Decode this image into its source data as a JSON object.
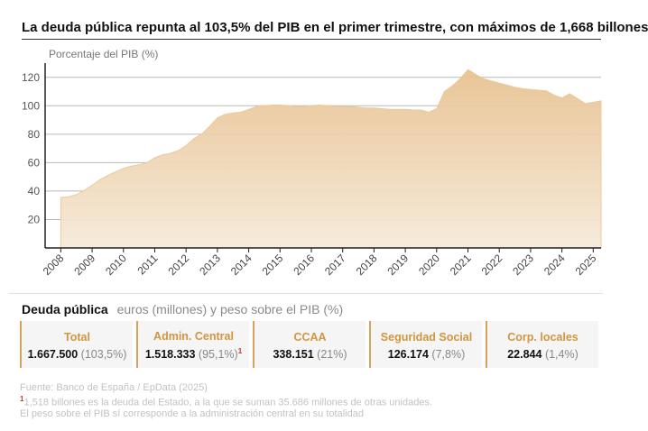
{
  "header": {
    "title": "La deuda pública repunta al 103,5% del PIB en el primer trimestre, con máximos de 1,668 billones"
  },
  "chart_data": {
    "type": "area",
    "ylabel": "Porcentaje del PIB (%)",
    "ylim": [
      0,
      130
    ],
    "yticks": [
      20,
      40,
      60,
      80,
      100,
      120
    ],
    "xlim": [
      2007.5,
      2025.25
    ],
    "xticks": [
      2008,
      2009,
      2010,
      2011,
      2012,
      2013,
      2014,
      2015,
      2016,
      2017,
      2018,
      2019,
      2020,
      2021,
      2022,
      2023,
      2024,
      2025
    ],
    "grid": true,
    "color": "#ebc99d",
    "points": [
      [
        2008.0,
        35.5
      ],
      [
        2008.25,
        36.0
      ],
      [
        2008.5,
        37.5
      ],
      [
        2008.75,
        40.5
      ],
      [
        2009.0,
        44.0
      ],
      [
        2009.25,
        48.0
      ],
      [
        2009.5,
        51.0
      ],
      [
        2009.75,
        53.5
      ],
      [
        2010.0,
        56.0
      ],
      [
        2010.25,
        57.5
      ],
      [
        2010.5,
        58.5
      ],
      [
        2010.75,
        60.0
      ],
      [
        2011.0,
        63.5
      ],
      [
        2011.25,
        65.5
      ],
      [
        2011.5,
        66.5
      ],
      [
        2011.75,
        68.5
      ],
      [
        2012.0,
        72.0
      ],
      [
        2012.25,
        77.0
      ],
      [
        2012.5,
        80.0
      ],
      [
        2012.75,
        85.5
      ],
      [
        2013.0,
        91.5
      ],
      [
        2013.25,
        94.0
      ],
      [
        2013.5,
        95.0
      ],
      [
        2013.75,
        95.5
      ],
      [
        2014.0,
        97.5
      ],
      [
        2014.25,
        99.5
      ],
      [
        2014.5,
        100.0
      ],
      [
        2014.75,
        100.5
      ],
      [
        2015.0,
        100.5
      ],
      [
        2015.25,
        100.0
      ],
      [
        2015.5,
        99.5
      ],
      [
        2015.75,
        99.5
      ],
      [
        2016.0,
        100.0
      ],
      [
        2016.25,
        100.5
      ],
      [
        2016.5,
        100.0
      ],
      [
        2016.75,
        99.5
      ],
      [
        2017.0,
        99.5
      ],
      [
        2017.25,
        99.5
      ],
      [
        2017.5,
        99.0
      ],
      [
        2017.75,
        98.5
      ],
      [
        2018.0,
        98.5
      ],
      [
        2018.25,
        98.0
      ],
      [
        2018.5,
        97.5
      ],
      [
        2018.75,
        97.5
      ],
      [
        2019.0,
        97.5
      ],
      [
        2019.25,
        97.0
      ],
      [
        2019.5,
        97.0
      ],
      [
        2019.75,
        95.5
      ],
      [
        2020.0,
        98.0
      ],
      [
        2020.25,
        110.0
      ],
      [
        2020.5,
        114.0
      ],
      [
        2020.75,
        119.0
      ],
      [
        2021.0,
        125.5
      ],
      [
        2021.25,
        122.0
      ],
      [
        2021.5,
        119.0
      ],
      [
        2021.75,
        117.5
      ],
      [
        2022.0,
        116.0
      ],
      [
        2022.25,
        114.5
      ],
      [
        2022.5,
        113.0
      ],
      [
        2022.75,
        112.0
      ],
      [
        2023.0,
        111.5
      ],
      [
        2023.25,
        111.0
      ],
      [
        2023.5,
        110.5
      ],
      [
        2023.75,
        107.5
      ],
      [
        2024.0,
        105.5
      ],
      [
        2024.25,
        108.5
      ],
      [
        2024.5,
        105.0
      ],
      [
        2024.75,
        101.5
      ],
      [
        2025.0,
        102.5
      ],
      [
        2025.25,
        103.5
      ]
    ]
  },
  "summary": {
    "heading": "Deuda pública",
    "subheading": "euros (millones) y peso sobre el PIB (%)",
    "cards": [
      {
        "label": "Total",
        "value": "1.667.500",
        "pct": "(103,5%)",
        "note": ""
      },
      {
        "label": "Admin. Central",
        "value": "1.518.333",
        "pct": "(95,1%)",
        "note": "1"
      },
      {
        "label": "CCAA",
        "value": "338.151",
        "pct": "(21%)",
        "note": ""
      },
      {
        "label": "Seguridad Social",
        "value": "126.174",
        "pct": "(7,8%)",
        "note": ""
      },
      {
        "label": "Corp. locales",
        "value": "22.844",
        "pct": "(1,4%)",
        "note": ""
      }
    ]
  },
  "footer": {
    "source": "Fuente: Banco de España / EpData (2025)",
    "note_marker": "1",
    "note1": "1,518 billones es la deuda del Estado, a la que se suman 35.686 millones de otras unidades.",
    "note2": "El peso sobre el PIB sí corresponde a la administración central en su totalidad"
  }
}
